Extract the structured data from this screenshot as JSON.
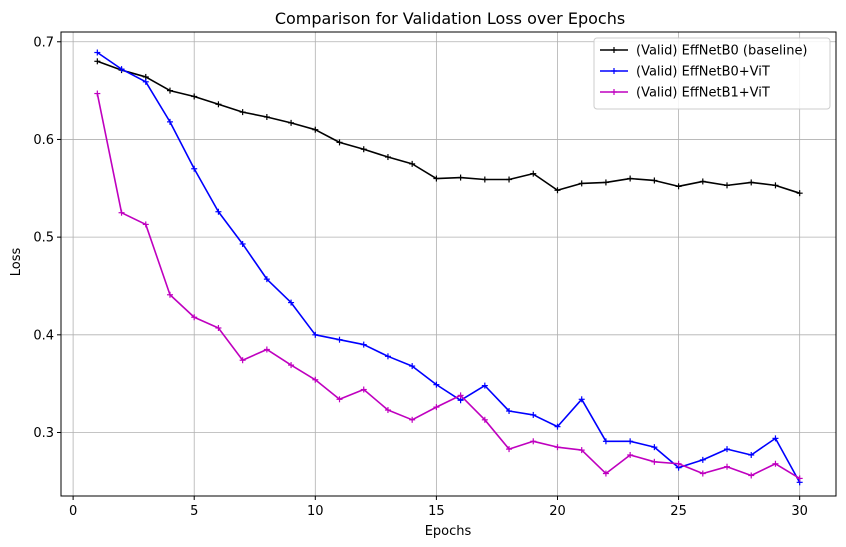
{
  "chart_data": {
    "type": "line",
    "title": "Comparison for Validation Loss over Epochs",
    "xlabel": "Epochs",
    "ylabel": "Loss",
    "xlim": [
      -0.5,
      31.5
    ],
    "ylim": [
      0.235,
      0.71
    ],
    "xticks": [
      0,
      5,
      10,
      15,
      20,
      25,
      30
    ],
    "yticks": [
      0.3,
      0.4,
      0.5,
      0.6,
      0.7
    ],
    "grid": true,
    "legend_position": "top-right",
    "x": [
      1,
      2,
      3,
      4,
      5,
      6,
      7,
      8,
      9,
      10,
      11,
      12,
      13,
      14,
      15,
      16,
      17,
      18,
      19,
      20,
      21,
      22,
      23,
      24,
      25,
      26,
      27,
      28,
      29,
      30
    ],
    "series": [
      {
        "name": "(Valid) EffNetB0 (baseline)",
        "color": "#000000",
        "values": [
          0.68,
          0.671,
          0.664,
          0.65,
          0.644,
          0.636,
          0.628,
          0.623,
          0.617,
          0.61,
          0.597,
          0.59,
          0.582,
          0.575,
          0.56,
          0.561,
          0.559,
          0.559,
          0.565,
          0.548,
          0.555,
          0.556,
          0.56,
          0.558,
          0.552,
          0.557,
          0.553,
          0.556,
          0.553,
          0.545
        ]
      },
      {
        "name": "(Valid) EffNetB0+ViT",
        "color": "#0000ff",
        "values": [
          0.689,
          0.672,
          0.659,
          0.618,
          0.57,
          0.526,
          0.493,
          0.457,
          0.433,
          0.4,
          0.395,
          0.39,
          0.378,
          0.368,
          0.349,
          0.333,
          0.348,
          0.322,
          0.318,
          0.306,
          0.334,
          0.291,
          0.291,
          0.285,
          0.264,
          0.272,
          0.283,
          0.277,
          0.294,
          0.249
        ]
      },
      {
        "name": "(Valid) EffNetB1+ViT",
        "color": "#bf00bf",
        "values": [
          0.647,
          0.525,
          0.513,
          0.441,
          0.418,
          0.407,
          0.374,
          0.385,
          0.369,
          0.354,
          0.334,
          0.344,
          0.323,
          0.313,
          0.326,
          0.338,
          0.313,
          0.283,
          0.291,
          0.285,
          0.282,
          0.258,
          0.277,
          0.27,
          0.268,
          0.258,
          0.265,
          0.256,
          0.268,
          0.253
        ]
      }
    ]
  }
}
